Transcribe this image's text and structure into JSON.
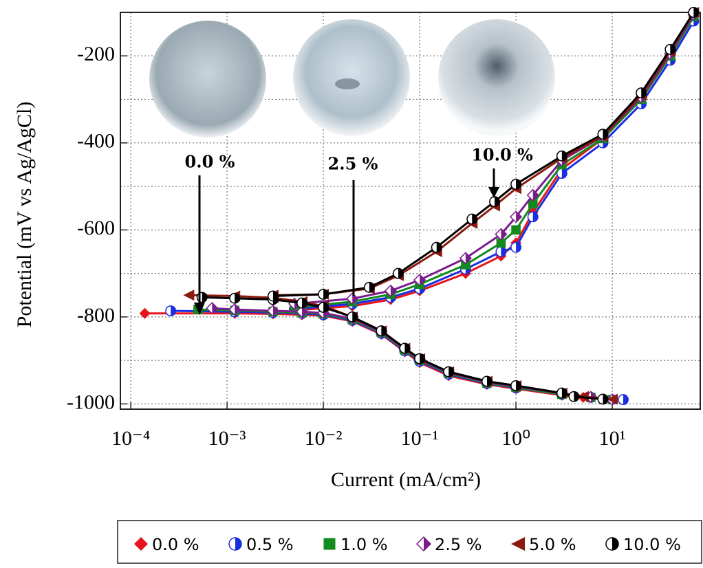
{
  "chart_data": {
    "type": "scatter",
    "xlabel": "Current (mA/cm²)",
    "ylabel": "Potential (mV vs Ag/AgCl)",
    "xscale": "log",
    "xlim": [
      7.8e-05,
      82
    ],
    "ylim": [
      -1012,
      -100
    ],
    "xticks": [
      {
        "value": 0.0001,
        "label": "10⁻⁴"
      },
      {
        "value": 0.001,
        "label": "10⁻³"
      },
      {
        "value": 0.01,
        "label": "10⁻²"
      },
      {
        "value": 0.1,
        "label": "10⁻¹"
      },
      {
        "value": 1,
        "label": "10⁰"
      },
      {
        "value": 10,
        "label": "10¹"
      }
    ],
    "yticks": [
      -1000,
      -800,
      -600,
      -400,
      -200
    ],
    "minor_yticks": [
      -900,
      -700,
      -500,
      -300
    ],
    "grid": true,
    "legend": "bottom",
    "annotations": [
      "0.0 %",
      "2.5 %",
      "10.0 %"
    ],
    "series": [
      {
        "name": "0.0 %",
        "color": "#e8141c",
        "marker": "diamond",
        "x": [
          0.00014,
          0.0012,
          0.003,
          0.006,
          0.01,
          0.02,
          0.04,
          0.07,
          0.1,
          0.2,
          0.5,
          1,
          3,
          5,
          10,
          null,
          0.005,
          0.02,
          0.05,
          0.1,
          0.3,
          0.7,
          1,
          1.5,
          3,
          8,
          20,
          40,
          70
        ],
        "y": [
          -792,
          -792,
          -793,
          -795,
          -797,
          -810,
          -840,
          -880,
          -905,
          -935,
          -955,
          -965,
          -980,
          -985,
          -990,
          null,
          -785,
          -775,
          -760,
          -740,
          -700,
          -660,
          -630,
          -560,
          -460,
          -390,
          -300,
          -200,
          -110
        ]
      },
      {
        "name": "0.5 %",
        "color": "#1b2de0",
        "marker": "half-circle",
        "x": [
          0.00026,
          0.0012,
          0.003,
          0.006,
          0.01,
          0.02,
          0.04,
          0.07,
          0.1,
          0.2,
          0.5,
          1,
          3,
          6,
          13,
          null,
          0.005,
          0.02,
          0.05,
          0.1,
          0.3,
          0.7,
          1,
          1.5,
          3,
          8,
          20,
          40,
          70
        ],
        "y": [
          -786,
          -788,
          -790,
          -792,
          -795,
          -808,
          -838,
          -878,
          -902,
          -932,
          -953,
          -963,
          -978,
          -985,
          -990,
          null,
          -782,
          -770,
          -755,
          -735,
          -690,
          -650,
          -640,
          -570,
          -470,
          -400,
          -310,
          -210,
          -120
        ]
      },
      {
        "name": "1.0 %",
        "color": "#138a1d",
        "marker": "square",
        "x": [
          0.0005,
          0.0012,
          0.003,
          0.006,
          0.01,
          0.02,
          0.04,
          0.07,
          0.1,
          0.2,
          0.5,
          1,
          3,
          6,
          10,
          null,
          0.005,
          0.02,
          0.05,
          0.1,
          0.3,
          0.7,
          1,
          1.5,
          3,
          8,
          20,
          40,
          70
        ],
        "y": [
          -783,
          -785,
          -788,
          -790,
          -793,
          -806,
          -836,
          -876,
          -900,
          -930,
          -952,
          -962,
          -978,
          -985,
          -990,
          null,
          -778,
          -765,
          -748,
          -725,
          -680,
          -630,
          -600,
          -540,
          -450,
          -390,
          -300,
          -200,
          -110
        ]
      },
      {
        "name": "2.5 %",
        "color": "#7b1c8c",
        "marker": "half-diamond",
        "x": [
          0.0007,
          0.0012,
          0.003,
          0.006,
          0.01,
          0.02,
          0.04,
          0.07,
          0.1,
          0.2,
          0.5,
          1,
          3,
          6,
          10,
          null,
          0.005,
          0.02,
          0.05,
          0.1,
          0.3,
          0.7,
          1,
          1.5,
          3,
          8,
          20,
          40,
          70
        ],
        "y": [
          -780,
          -783,
          -786,
          -788,
          -791,
          -804,
          -834,
          -874,
          -898,
          -928,
          -950,
          -960,
          -976,
          -984,
          -990,
          null,
          -770,
          -758,
          -740,
          -715,
          -665,
          -610,
          -570,
          -520,
          -440,
          -385,
          -295,
          -195,
          -105
        ]
      },
      {
        "name": "5.0 %",
        "color": "#8b1a10",
        "marker": "triangle-left",
        "x": [
          0.0004,
          0.0012,
          0.003,
          0.006,
          0.01,
          0.02,
          0.04,
          0.07,
          0.1,
          0.2,
          0.5,
          1,
          3,
          5,
          10,
          null,
          0.003,
          0.01,
          0.03,
          0.06,
          0.15,
          0.35,
          0.6,
          1,
          3,
          8,
          20,
          40,
          70
        ],
        "y": [
          -750,
          -752,
          -756,
          -765,
          -775,
          -800,
          -832,
          -872,
          -896,
          -926,
          -948,
          -958,
          -975,
          -983,
          -989,
          null,
          -750,
          -748,
          -735,
          -705,
          -650,
          -585,
          -545,
          -505,
          -435,
          -385,
          -290,
          -190,
          -100
        ]
      },
      {
        "name": "10.0 %",
        "color": "#000000",
        "marker": "half-circle",
        "x": [
          0.00055,
          0.0012,
          0.003,
          0.006,
          0.01,
          0.02,
          0.04,
          0.07,
          0.1,
          0.2,
          0.5,
          1,
          3,
          4,
          8,
          null,
          0.003,
          0.01,
          0.03,
          0.06,
          0.15,
          0.35,
          0.6,
          1,
          3,
          8,
          20,
          40,
          70
        ],
        "y": [
          -755,
          -757,
          -760,
          -768,
          -778,
          -800,
          -832,
          -872,
          -896,
          -926,
          -948,
          -958,
          -975,
          -983,
          -989,
          null,
          -752,
          -748,
          -732,
          -700,
          -640,
          -575,
          -535,
          -495,
          -430,
          -380,
          -285,
          -185,
          -100
        ]
      }
    ]
  }
}
